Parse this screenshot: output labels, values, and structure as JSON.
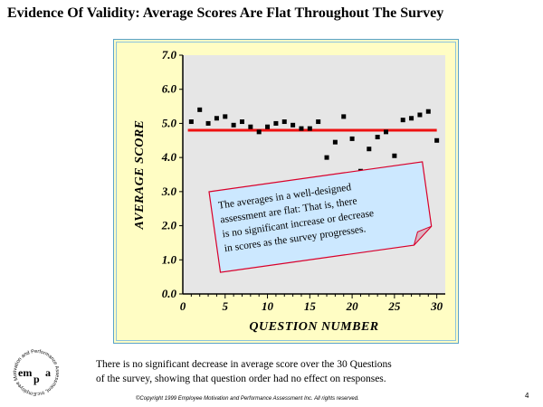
{
  "slide": {
    "title": "Evidence Of Validity: Average Scores Are Flat Throughout The Survey",
    "caption_line1": "There is no significant decrease in average score over the 30 Questions",
    "caption_line2": "of the survey, showing that question order had no effect on responses.",
    "copyright": "©Copyright 1999  Employee Motivation and Performance Assessment Inc. All rights reserved.",
    "page_number": "4"
  },
  "logo": {
    "ring_text": "Employee Motivation and Performance Assessment, Inc.",
    "letters_left": "em",
    "letters_right": "a",
    "letter_mid": "p"
  },
  "chart_data": {
    "type": "scatter",
    "xlabel": "QUESTION NUMBER",
    "ylabel": "AVERAGE SCORE",
    "xlim": [
      0,
      31
    ],
    "ylim": [
      0,
      7
    ],
    "xticks": [
      0,
      5,
      10,
      15,
      20,
      25,
      30
    ],
    "xtick_labels": [
      "0",
      "5",
      "10",
      "15",
      "20",
      "25",
      "30"
    ],
    "yticks": [
      0,
      1,
      2,
      3,
      4,
      5,
      6,
      7
    ],
    "ytick_labels": [
      "0.0",
      "1.0",
      "2.0",
      "3.0",
      "4.0",
      "5.0",
      "6.0",
      "7.0"
    ],
    "grid": false,
    "series": [
      {
        "x": [
          1,
          2,
          3,
          4,
          5,
          6,
          7,
          8,
          9,
          10,
          11,
          12,
          13,
          14,
          15,
          16,
          17,
          18,
          19,
          20,
          21,
          22,
          23,
          24,
          25,
          26,
          27,
          28,
          29,
          30
        ],
        "y": [
          5.05,
          5.4,
          5.0,
          5.15,
          5.2,
          4.95,
          5.05,
          4.9,
          4.75,
          4.9,
          5.0,
          5.05,
          4.95,
          4.85,
          4.85,
          5.05,
          4.0,
          4.45,
          5.2,
          4.55,
          3.6,
          4.25,
          4.6,
          4.75,
          4.05,
          5.1,
          5.15,
          5.25,
          5.35,
          4.5
        ]
      }
    ],
    "mean_line": 4.8,
    "mean_line_color": "#ee1111",
    "annotation_lines": [
      "The averages in a well-designed",
      "assessment are flat: That is, there",
      "is no significant increase or decrease",
      "in scores as the survey progresses."
    ]
  },
  "colors": {
    "frame_background": "#fffdc4",
    "plot_background": "#e6e6e6",
    "note_fill": "#cce8ff",
    "note_border": "#d9002a"
  }
}
